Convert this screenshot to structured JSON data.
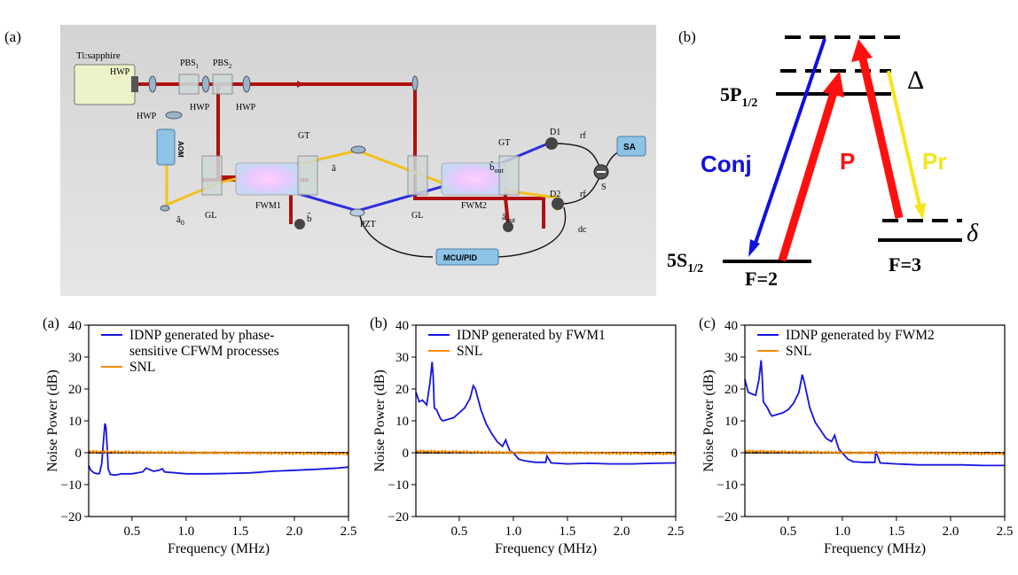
{
  "top": {
    "setup": {
      "panel_label": "(a)",
      "laser_label": "Ti:sapphire",
      "hwp_label": "HWP",
      "pbs1_base": "PBS",
      "pbs1_sub": "1",
      "pbs2_base": "PBS",
      "pbs2_sub": "2",
      "aom_label": "AOM",
      "gt_label": "GT",
      "gl_label": "GL",
      "fwm1_label": "FWM1",
      "fwm2_label": "FWM2",
      "pzt_label": "PZT",
      "a_label": "â",
      "b_label": "b̂",
      "a0_base": "â",
      "a0_sub": "0",
      "bout_base": "b̂",
      "bout_sub": "out",
      "aout_base": "â",
      "aout_sub": "out",
      "d1_label": "D1",
      "d2_label": "D2",
      "rf_label": "rf",
      "dc_label": "dc",
      "s_label": "S",
      "sa_label": "SA",
      "mcu_label": "MCU/PID",
      "colors": {
        "pump": "#b01010",
        "probe": "#f2c21b",
        "conj": "#2b2ee0",
        "bg": "#dcdcdc",
        "box": "#8ec3e6"
      }
    },
    "levels": {
      "panel_label": "(b)",
      "p_level_base": "5P",
      "p_level_sub": "1/2",
      "s_level_base": "5S",
      "s_level_sub": "1/2",
      "f2_label": "F=2",
      "f3_label": "F=3",
      "delta_big": "Δ",
      "delta_small": "δ",
      "conj_label": "Conj",
      "p_label": "P",
      "pr_label": "Pr",
      "colors": {
        "conj": "#1010e0",
        "p": "#ff1010",
        "pr": "#f5e61a"
      }
    }
  },
  "charts": {
    "chart_data": [
      {
        "type": "line",
        "panel_label": "(a)",
        "xlabel": "Frequency (MHz)",
        "ylabel": "Noise Power (dB)",
        "xlim": [
          0.1,
          2.5
        ],
        "ylim": [
          -20,
          40
        ],
        "xticks": [
          "0.5",
          "1.0",
          "1.5",
          "2.0",
          "2.5"
        ],
        "yticks": [
          "40",
          "30",
          "20",
          "10",
          "0",
          "−10",
          "−20"
        ],
        "legend_position": "top-left",
        "grid": false,
        "series": [
          {
            "name": "IDNP generated by phase-sensitive CFWM processes",
            "legend_lines": [
              "IDNP generated by phase-",
              "sensitive CFWM processes"
            ],
            "color": "#1515e0",
            "x": [
              0.1,
              0.12,
              0.15,
              0.18,
              0.2,
              0.22,
              0.24,
              0.25,
              0.26,
              0.27,
              0.28,
              0.3,
              0.35,
              0.4,
              0.5,
              0.6,
              0.63,
              0.7,
              0.75,
              0.78,
              0.8,
              0.9,
              1.0,
              1.2,
              1.4,
              1.6,
              1.8,
              2.0,
              2.2,
              2.4,
              2.5
            ],
            "y": [
              -4,
              -5.5,
              -6.3,
              -6.6,
              -6.5,
              -3.5,
              5,
              9.2,
              8,
              2,
              -5,
              -6.8,
              -7,
              -6.6,
              -6.6,
              -6,
              -4.8,
              -5.8,
              -5.5,
              -5,
              -6,
              -6.3,
              -6.6,
              -6.6,
              -6.5,
              -6.3,
              -5.8,
              -5.5,
              -5.2,
              -4.8,
              -4.5
            ]
          },
          {
            "name": "SNL",
            "color": "#ff8c00",
            "x": [
              0.1,
              0.3,
              0.5,
              0.7,
              0.9,
              1.1,
              1.3,
              1.5,
              1.7,
              1.9,
              2.1,
              2.3,
              2.5
            ],
            "y": [
              0.4,
              0.3,
              0.2,
              0.1,
              0.1,
              0,
              0,
              -0.1,
              -0.1,
              -0.2,
              -0.2,
              -0.3,
              -0.3
            ]
          }
        ]
      },
      {
        "type": "line",
        "panel_label": "(b)",
        "xlabel": "Frequency (MHz)",
        "ylabel": "Noise Power (dB)",
        "xlim": [
          0.1,
          2.5
        ],
        "ylim": [
          -20,
          40
        ],
        "xticks": [
          "0.5",
          "1.0",
          "1.5",
          "2.0",
          "2.5"
        ],
        "yticks": [
          "40",
          "30",
          "20",
          "10",
          "0",
          "−10",
          "−20"
        ],
        "legend_position": "top-left",
        "grid": false,
        "series": [
          {
            "name": "IDNP generated by FWM1",
            "legend_lines": [
              "IDNP generated by FWM1"
            ],
            "color": "#1515e0",
            "x": [
              0.1,
              0.13,
              0.16,
              0.2,
              0.23,
              0.25,
              0.26,
              0.27,
              0.29,
              0.31,
              0.33,
              0.35,
              0.4,
              0.45,
              0.5,
              0.55,
              0.6,
              0.63,
              0.65,
              0.7,
              0.75,
              0.8,
              0.85,
              0.9,
              0.93,
              0.95,
              0.97,
              1.0,
              1.05,
              1.1,
              1.2,
              1.3,
              1.31,
              1.35,
              1.5,
              1.7,
              1.9,
              2.1,
              2.3,
              2.5
            ],
            "y": [
              19,
              16,
              16.5,
              15,
              22,
              28.5,
              24,
              14,
              13.5,
              12,
              10.5,
              10,
              10.5,
              11,
              12.5,
              14,
              17,
              21,
              20,
              13.5,
              9,
              6,
              3.5,
              2,
              4,
              2,
              0.5,
              0,
              -2,
              -2.5,
              -3,
              -3,
              -1,
              -3.2,
              -3.5,
              -3.3,
              -3.5,
              -3.5,
              -3.3,
              -3.2
            ]
          },
          {
            "name": "SNL",
            "color": "#ff8c00",
            "x": [
              0.1,
              0.3,
              0.5,
              0.7,
              0.9,
              1.1,
              1.3,
              1.5,
              1.7,
              1.9,
              2.1,
              2.3,
              2.5
            ],
            "y": [
              0.5,
              0.4,
              0.3,
              0.2,
              0.1,
              0,
              0,
              -0.1,
              -0.1,
              -0.2,
              -0.2,
              -0.3,
              -0.3
            ]
          }
        ]
      },
      {
        "type": "line",
        "panel_label": "(c)",
        "xlabel": "Frequency (MHz)",
        "ylabel": "Noise Power (dB)",
        "xlim": [
          0.1,
          2.5
        ],
        "ylim": [
          -20,
          40
        ],
        "xticks": [
          "0.5",
          "1.0",
          "1.5",
          "2.0",
          "2.5"
        ],
        "yticks": [
          "40",
          "30",
          "20",
          "10",
          "0",
          "−10",
          "−20"
        ],
        "legend_position": "top-left",
        "grid": false,
        "series": [
          {
            "name": "IDNP generated by FWM2",
            "legend_lines": [
              "IDNP generated by FWM2"
            ],
            "color": "#1515e0",
            "x": [
              0.1,
              0.13,
              0.16,
              0.2,
              0.23,
              0.25,
              0.26,
              0.27,
              0.29,
              0.31,
              0.33,
              0.35,
              0.4,
              0.45,
              0.5,
              0.55,
              0.6,
              0.63,
              0.65,
              0.7,
              0.75,
              0.8,
              0.85,
              0.9,
              0.93,
              0.95,
              0.97,
              1.0,
              1.05,
              1.1,
              1.2,
              1.3,
              1.31,
              1.35,
              1.5,
              1.7,
              1.9,
              2.1,
              2.3,
              2.5
            ],
            "y": [
              23,
              19,
              18.5,
              18,
              23,
              29,
              24,
              16,
              15,
              14,
              12.5,
              11.5,
              12,
              12.5,
              13.5,
              15.5,
              19,
              24.5,
              22,
              14,
              9.5,
              7,
              4.5,
              3.5,
              5.5,
              3,
              1,
              0,
              -2,
              -2.8,
              -3,
              -3,
              0.5,
              -3.2,
              -3.5,
              -3.8,
              -3.8,
              -3.8,
              -4,
              -4
            ]
          },
          {
            "name": "SNL",
            "color": "#ff8c00",
            "x": [
              0.1,
              0.3,
              0.5,
              0.7,
              0.9,
              1.1,
              1.3,
              1.5,
              1.7,
              1.9,
              2.1,
              2.3,
              2.5
            ],
            "y": [
              0.5,
              0.4,
              0.3,
              0.2,
              0.1,
              0,
              0,
              -0.1,
              -0.1,
              -0.2,
              -0.2,
              -0.3,
              -0.3
            ]
          }
        ]
      }
    ]
  }
}
